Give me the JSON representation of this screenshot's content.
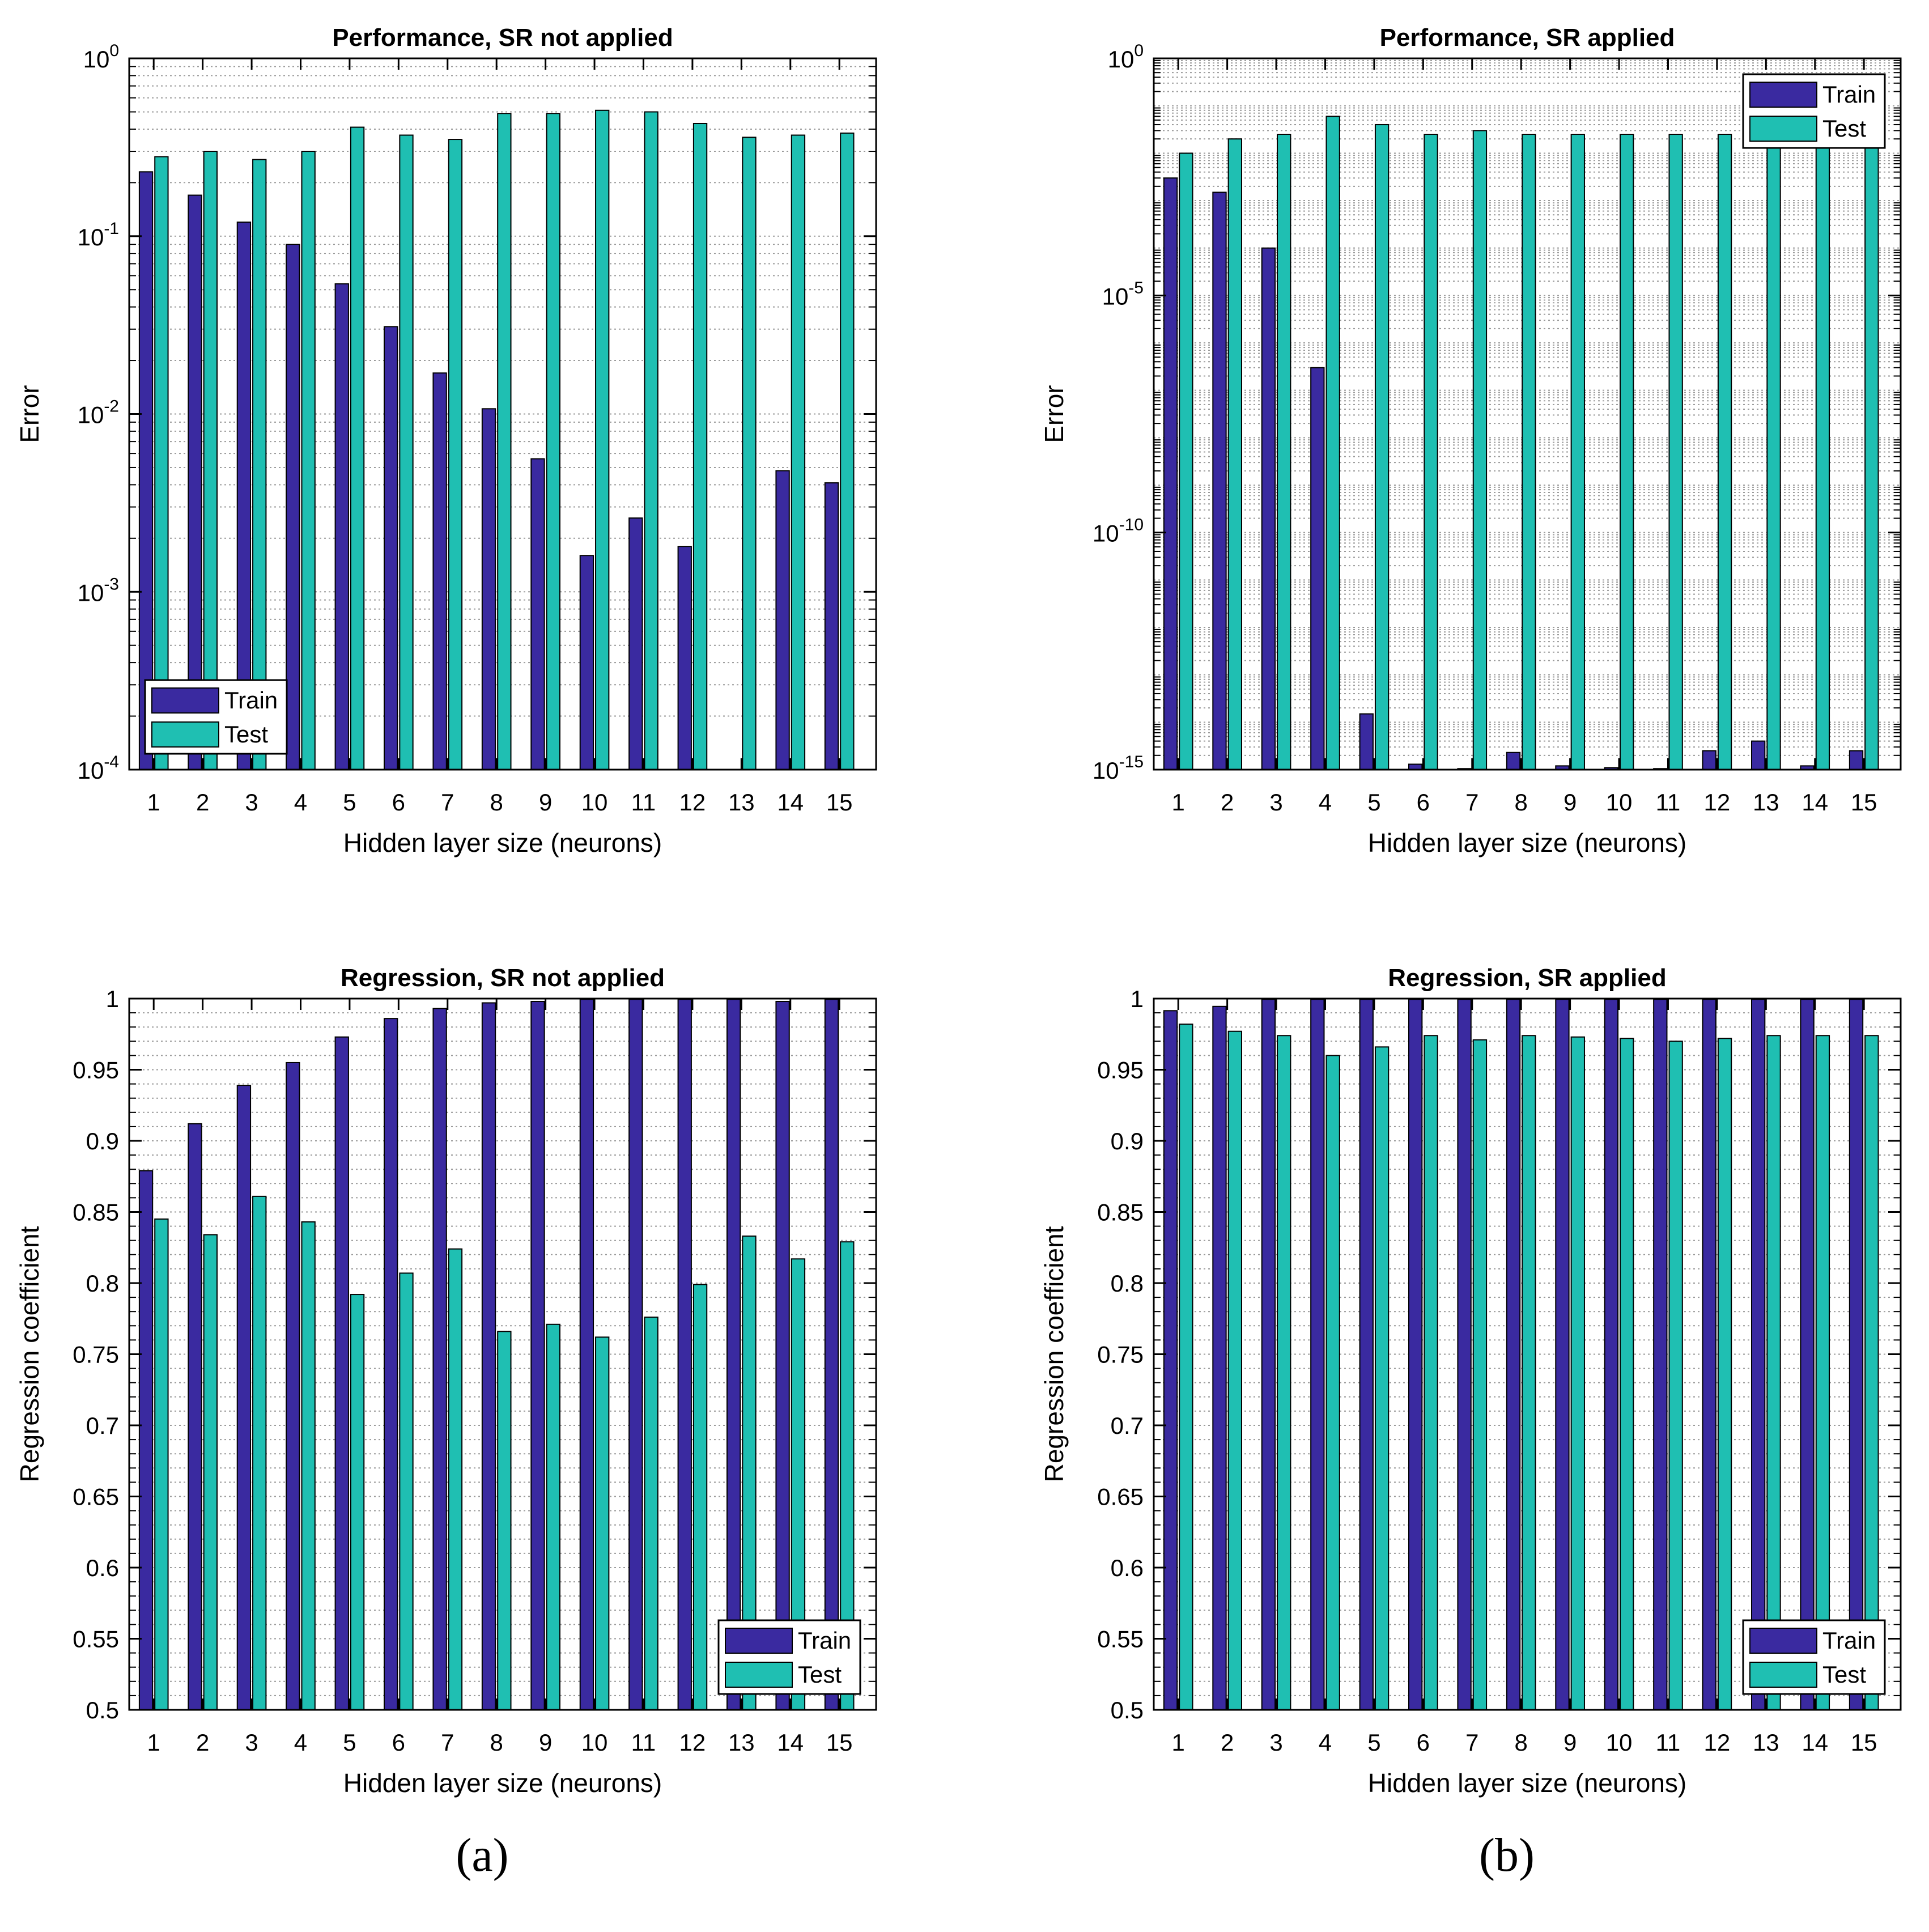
{
  "colors": {
    "train": "#3a2aa0",
    "test": "#1fbfb2",
    "grid": "#9a9a9a",
    "axis": "#000000",
    "background": "#ffffff"
  },
  "captions": {
    "a": "(a)",
    "b": "(b)"
  },
  "legend_labels": [
    "Train",
    "Test"
  ],
  "chart_data": [
    {
      "type": "bar",
      "title": "Performance, SR not applied",
      "xlabel": "Hidden layer size (neurons)",
      "ylabel": "Error",
      "yscale": "log",
      "ylim": [
        0.0001,
        1
      ],
      "categories": [
        "1",
        "2",
        "3",
        "4",
        "5",
        "6",
        "7",
        "8",
        "9",
        "10",
        "11",
        "12",
        "13",
        "14",
        "15"
      ],
      "yticks": [
        {
          "value": 1,
          "mantissa": "10",
          "exp": "0"
        },
        {
          "value": 0.1,
          "mantissa": "10",
          "exp": "-1"
        },
        {
          "value": 0.01,
          "mantissa": "10",
          "exp": "-2"
        },
        {
          "value": 0.001,
          "mantissa": "10",
          "exp": "-3"
        },
        {
          "value": 0.0001,
          "mantissa": "10",
          "exp": "-4"
        }
      ],
      "grid": true,
      "legend": "bottom-left",
      "series": [
        {
          "name": "Train",
          "values": [
            0.23,
            0.17,
            0.12,
            0.09,
            0.054,
            0.031,
            0.017,
            0.0107,
            0.0056,
            0.0016,
            0.0026,
            0.0018,
            0.0001,
            0.0048,
            0.0041
          ]
        },
        {
          "name": "Test",
          "values": [
            0.28,
            0.3,
            0.27,
            0.3,
            0.41,
            0.37,
            0.35,
            0.49,
            0.49,
            0.51,
            0.5,
            0.43,
            0.36,
            0.37,
            0.38
          ]
        }
      ]
    },
    {
      "type": "bar",
      "title": "Performance, SR applied",
      "xlabel": "Hidden layer size (neurons)",
      "ylabel": "Error",
      "yscale": "log",
      "ylim": [
        1e-15,
        1
      ],
      "categories": [
        "1",
        "2",
        "3",
        "4",
        "5",
        "6",
        "7",
        "8",
        "9",
        "10",
        "11",
        "12",
        "13",
        "14",
        "15"
      ],
      "yticks": [
        {
          "value": 1,
          "mantissa": "10",
          "exp": "0"
        },
        {
          "value": 1e-05,
          "mantissa": "10",
          "exp": "-5"
        },
        {
          "value": 1e-10,
          "mantissa": "10",
          "exp": "-10"
        },
        {
          "value": 1e-15,
          "mantissa": "10",
          "exp": "-15"
        }
      ],
      "grid": true,
      "legend": "top-right",
      "series": [
        {
          "name": "Train",
          "values": [
            0.003,
            0.0015,
            0.0001,
            3e-07,
            1.5e-14,
            1.3e-15,
            1.05e-15,
            2.3e-15,
            1.2e-15,
            1.1e-15,
            1.05e-15,
            2.5e-15,
            4e-15,
            1.2e-15,
            2.5e-15
          ]
        },
        {
          "name": "Test",
          "values": [
            0.01,
            0.02,
            0.025,
            0.06,
            0.04,
            0.025,
            0.03,
            0.025,
            0.025,
            0.025,
            0.025,
            0.025,
            0.025,
            0.025,
            0.025
          ]
        }
      ]
    },
    {
      "type": "bar",
      "title": "Regression, SR not applied",
      "xlabel": "Hidden layer size (neurons)",
      "ylabel": "Regression coefficient",
      "yscale": "linear",
      "ylim": [
        0.5,
        1
      ],
      "categories": [
        "1",
        "2",
        "3",
        "4",
        "5",
        "6",
        "7",
        "8",
        "9",
        "10",
        "11",
        "12",
        "13",
        "14",
        "15"
      ],
      "yticks": [
        {
          "value": 1,
          "label": "1"
        },
        {
          "value": 0.95,
          "label": "0.95"
        },
        {
          "value": 0.9,
          "label": "0.9"
        },
        {
          "value": 0.85,
          "label": "0.85"
        },
        {
          "value": 0.8,
          "label": "0.8"
        },
        {
          "value": 0.75,
          "label": "0.75"
        },
        {
          "value": 0.7,
          "label": "0.7"
        },
        {
          "value": 0.65,
          "label": "0.65"
        },
        {
          "value": 0.6,
          "label": "0.6"
        },
        {
          "value": 0.55,
          "label": "0.55"
        },
        {
          "value": 0.5,
          "label": "0.5"
        }
      ],
      "grid": true,
      "legend": "bottom-right",
      "series": [
        {
          "name": "Train",
          "values": [
            0.879,
            0.912,
            0.939,
            0.955,
            0.973,
            0.986,
            0.993,
            0.997,
            0.998,
            0.9995,
            0.9995,
            0.9995,
            0.9995,
            0.998,
            0.9995
          ]
        },
        {
          "name": "Test",
          "values": [
            0.845,
            0.834,
            0.861,
            0.843,
            0.792,
            0.807,
            0.824,
            0.766,
            0.771,
            0.762,
            0.776,
            0.799,
            0.833,
            0.817,
            0.829
          ]
        }
      ]
    },
    {
      "type": "bar",
      "title": "Regression, SR applied",
      "xlabel": "Hidden layer size (neurons)",
      "ylabel": "Regression coefficient",
      "yscale": "linear",
      "ylim": [
        0.5,
        1
      ],
      "categories": [
        "1",
        "2",
        "3",
        "4",
        "5",
        "6",
        "7",
        "8",
        "9",
        "10",
        "11",
        "12",
        "13",
        "14",
        "15"
      ],
      "yticks": [
        {
          "value": 1,
          "label": "1"
        },
        {
          "value": 0.95,
          "label": "0.95"
        },
        {
          "value": 0.9,
          "label": "0.9"
        },
        {
          "value": 0.85,
          "label": "0.85"
        },
        {
          "value": 0.8,
          "label": "0.8"
        },
        {
          "value": 0.75,
          "label": "0.75"
        },
        {
          "value": 0.7,
          "label": "0.7"
        },
        {
          "value": 0.65,
          "label": "0.65"
        },
        {
          "value": 0.6,
          "label": "0.6"
        },
        {
          "value": 0.55,
          "label": "0.55"
        },
        {
          "value": 0.5,
          "label": "0.5"
        }
      ],
      "grid": true,
      "legend": "bottom-right",
      "series": [
        {
          "name": "Train",
          "values": [
            0.9915,
            0.9945,
            0.9995,
            0.9995,
            0.9995,
            0.9995,
            0.9995,
            0.9995,
            0.9995,
            0.9995,
            0.9995,
            0.9995,
            0.9995,
            0.9995,
            0.9995
          ]
        },
        {
          "name": "Test",
          "values": [
            0.982,
            0.977,
            0.974,
            0.96,
            0.966,
            0.974,
            0.971,
            0.974,
            0.973,
            0.972,
            0.97,
            0.972,
            0.974,
            0.974,
            0.974
          ]
        }
      ]
    }
  ]
}
